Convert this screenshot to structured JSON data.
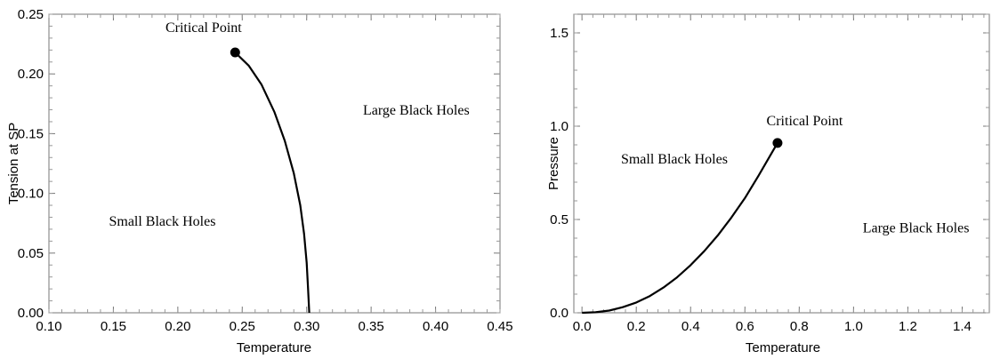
{
  "chart_data": [
    {
      "type": "line",
      "xlabel": "Temperature",
      "ylabel": "Tension at SP",
      "xlim": [
        0.1,
        0.45
      ],
      "ylim": [
        0.0,
        0.25
      ],
      "xticks": [
        "0.10",
        "0.15",
        "0.20",
        "0.25",
        "0.30",
        "0.35",
        "0.40",
        "0.45"
      ],
      "yticks": [
        "0.00",
        "0.05",
        "0.10",
        "0.15",
        "0.20",
        "0.25"
      ],
      "grid": false,
      "series": [
        {
          "x": [
            0.2445,
            0.255,
            0.265,
            0.275,
            0.283,
            0.29,
            0.295,
            0.298,
            0.3,
            0.301,
            0.302
          ],
          "y": [
            0.218,
            0.207,
            0.191,
            0.168,
            0.144,
            0.117,
            0.09,
            0.066,
            0.042,
            0.021,
            0.0
          ]
        }
      ],
      "critical_point": {
        "x": 0.2445,
        "y": 0.218
      },
      "annotations": [
        {
          "text": "Critical Point",
          "x": 0.22,
          "y": 0.235
        },
        {
          "text": "Large Black Holes",
          "x": 0.385,
          "y": 0.166
        },
        {
          "text": "Small Black Holes",
          "x": 0.188,
          "y": 0.073
        }
      ]
    },
    {
      "type": "line",
      "xlabel": "Temperature",
      "ylabel": "Pressure",
      "xlim": [
        -0.03,
        1.5
      ],
      "ylim": [
        0.0,
        1.6
      ],
      "xticks": [
        "0.0",
        "0.2",
        "0.4",
        "0.6",
        "0.8",
        "1.0",
        "1.2",
        "1.4"
      ],
      "yticks": [
        "0.0",
        "0.5",
        "1.0",
        "1.5"
      ],
      "grid": false,
      "series": [
        {
          "x": [
            0.0,
            0.05,
            0.1,
            0.15,
            0.2,
            0.25,
            0.3,
            0.35,
            0.4,
            0.45,
            0.5,
            0.55,
            0.6,
            0.65,
            0.7,
            0.72
          ],
          "y": [
            0.0,
            0.003,
            0.012,
            0.03,
            0.055,
            0.09,
            0.135,
            0.19,
            0.255,
            0.33,
            0.415,
            0.51,
            0.615,
            0.735,
            0.86,
            0.91
          ]
        }
      ],
      "critical_point": {
        "x": 0.72,
        "y": 0.91
      },
      "annotations": [
        {
          "text": "Critical Point",
          "x": 0.82,
          "y": 1.005
        },
        {
          "text": "Small Black Holes",
          "x": 0.34,
          "y": 0.8
        },
        {
          "text": "Large Black Holes",
          "x": 1.23,
          "y": 0.43
        }
      ]
    }
  ]
}
